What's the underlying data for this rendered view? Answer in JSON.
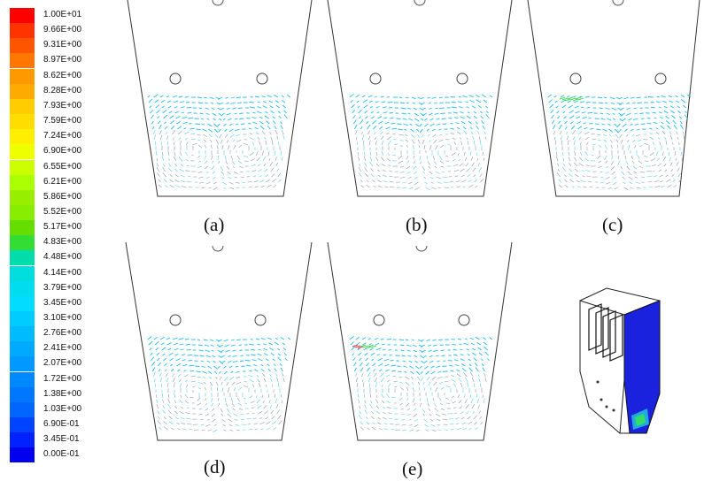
{
  "colorbar": {
    "labels": [
      "1.00E+01",
      "9.66E+00",
      "9.31E+00",
      "8.97E+00",
      "8.62E+00",
      "8.28E+00",
      "7.93E+00",
      "7.59E+00",
      "7.24E+00",
      "6.90E+00",
      "6.55E+00",
      "6.21E+00",
      "5.86E+00",
      "5.52E+00",
      "5.17E+00",
      "4.83E+00",
      "4.48E+00",
      "4.14E+00",
      "3.79E+00",
      "3.45E+00",
      "3.10E+00",
      "2.76E+00",
      "2.41E+00",
      "2.07E+00",
      "1.72E+00",
      "1.38E+00",
      "1.03E+00",
      "6.90E-01",
      "3.45E-01",
      "0.00E-01"
    ],
    "colors": [
      "#ff0000",
      "#ff3300",
      "#ff5500",
      "#ff7700",
      "#ff9900",
      "#ffaa00",
      "#ffcc00",
      "#ffdd00",
      "#ffee00",
      "#eeff00",
      "#ccff00",
      "#aaff00",
      "#99ee00",
      "#88ee00",
      "#66dd00",
      "#33dd33",
      "#00ddaa",
      "#00dddd",
      "#00ddee",
      "#00ddff",
      "#00ccff",
      "#00bbff",
      "#00aaff",
      "#0099ff",
      "#0088ff",
      "#0077ff",
      "#0066ff",
      "#0044ff",
      "#0022ff",
      "#0000ee"
    ]
  },
  "panels": [
    {
      "label": "(a)"
    },
    {
      "label": "(b)"
    },
    {
      "label": "(c)"
    },
    {
      "label": "(d)"
    },
    {
      "label": "(e)"
    }
  ]
}
